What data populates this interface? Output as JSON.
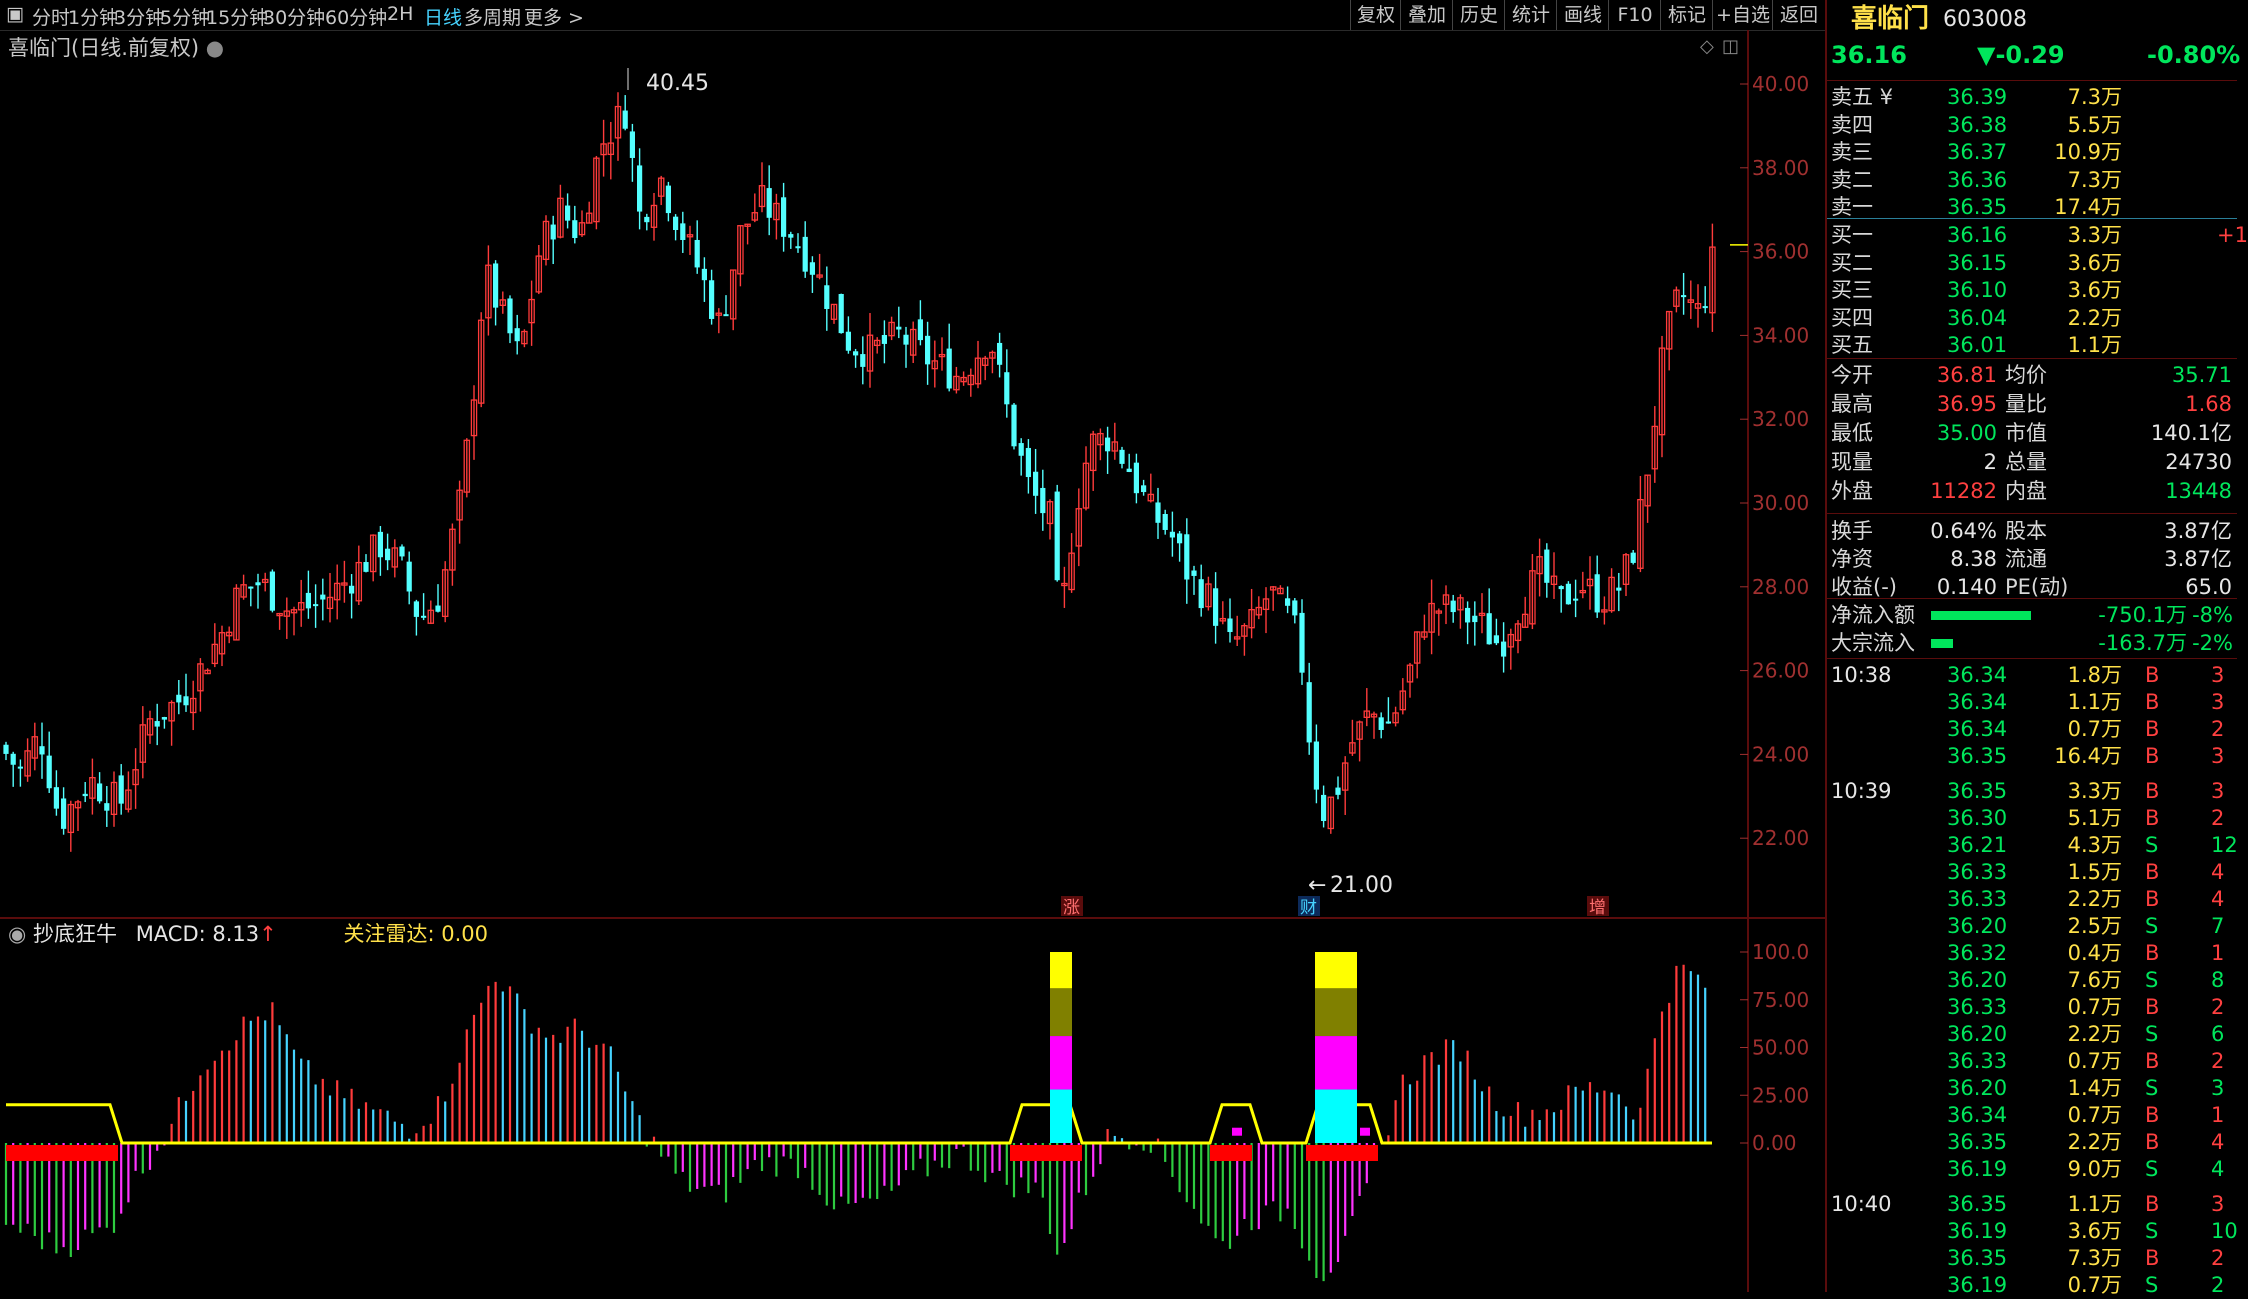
{
  "toolbar": {
    "periods": [
      "分时",
      "1分钟",
      "3分钟",
      "5分钟",
      "15分钟",
      "30分钟",
      "60分钟",
      "2H",
      "日线",
      "多周期",
      "更多 >"
    ],
    "active_period": "日线",
    "right_buttons": [
      "复权",
      "叠加",
      "历史",
      "统计",
      "画线",
      "F10",
      "标记",
      "+自选",
      "返回"
    ]
  },
  "chart": {
    "title": "喜临门(日线.前复权)",
    "price_axis": [
      "40.00",
      "38.00",
      "36.00",
      "34.00",
      "32.00",
      "30.00",
      "28.00",
      "26.00",
      "24.00",
      "22.00"
    ],
    "high_label": "40.45",
    "low_label": "21.00",
    "markers": [
      "涨",
      "财",
      "增"
    ]
  },
  "indicator": {
    "name": "抄底狂牛",
    "macd_label": "MACD: 8.13",
    "macd_arrow": "↑",
    "radar_label": "关注雷达: 0.00",
    "axis": [
      "100.0",
      "75.00",
      "50.00",
      "25.00",
      "0.00"
    ]
  },
  "quote": {
    "name": "喜临门",
    "code": "603008",
    "price": "36.16",
    "change": "▼-0.29",
    "change_pct": "-0.80%",
    "asks": [
      {
        "label": "卖五 ¥",
        "price": "36.39",
        "vol": "7.3万"
      },
      {
        "label": "卖四",
        "price": "36.38",
        "vol": "5.5万"
      },
      {
        "label": "卖三",
        "price": "36.37",
        "vol": "10.9万"
      },
      {
        "label": "卖二",
        "price": "36.36",
        "vol": "7.3万"
      },
      {
        "label": "卖一",
        "price": "36.35",
        "vol": "17.4万"
      }
    ],
    "bids": [
      {
        "label": "买一",
        "price": "36.16",
        "vol": "3.3万",
        "extra": "+1"
      },
      {
        "label": "买二",
        "price": "36.15",
        "vol": "3.6万",
        "extra": ""
      },
      {
        "label": "买三",
        "price": "36.10",
        "vol": "3.6万",
        "extra": ""
      },
      {
        "label": "买四",
        "price": "36.04",
        "vol": "2.2万",
        "extra": ""
      },
      {
        "label": "买五",
        "price": "36.01",
        "vol": "1.1万",
        "extra": ""
      }
    ],
    "stats": [
      {
        "l1": "今开",
        "v1": "36.81",
        "l2": "均价",
        "v2": "35.71"
      },
      {
        "l1": "最高",
        "v1": "36.95",
        "l2": "量比",
        "v2": "1.68"
      },
      {
        "l1": "最低",
        "v1": "35.00",
        "l2": "市值",
        "v2": "140.1亿"
      },
      {
        "l1": "现量",
        "v1": "2",
        "l2": "总量",
        "v2": "24730"
      },
      {
        "l1": "外盘",
        "v1": "11282",
        "l2": "内盘",
        "v2": "13448"
      }
    ],
    "stats2": [
      {
        "l1": "换手",
        "v1": "0.64%",
        "l2": "股本",
        "v2": "3.87亿"
      },
      {
        "l1": "净资",
        "v1": "8.38",
        "l2": "流通",
        "v2": "3.87亿"
      },
      {
        "l1": "收益(-)",
        "v1": "0.140",
        "l2": "PE(动)",
        "v2": "65.0"
      }
    ],
    "flows": [
      {
        "label": "净流入额",
        "value": "-750.1万",
        "pct": "-8%"
      },
      {
        "label": "大宗流入",
        "value": "-163.7万",
        "pct": "-2%"
      }
    ],
    "ticks": [
      {
        "time": "10:38",
        "price": "36.34",
        "vol": "1.8万",
        "bs": "B",
        "n": "3"
      },
      {
        "time": "",
        "price": "36.34",
        "vol": "1.1万",
        "bs": "B",
        "n": "3"
      },
      {
        "time": "",
        "price": "36.34",
        "vol": "0.7万",
        "bs": "B",
        "n": "2"
      },
      {
        "time": "",
        "price": "36.35",
        "vol": "16.4万",
        "bs": "B",
        "n": "3"
      },
      {
        "time": "10:39",
        "price": "36.35",
        "vol": "3.3万",
        "bs": "B",
        "n": "3"
      },
      {
        "time": "",
        "price": "36.30",
        "vol": "5.1万",
        "bs": "B",
        "n": "2"
      },
      {
        "time": "",
        "price": "36.21",
        "vol": "4.3万",
        "bs": "S",
        "n": "12"
      },
      {
        "time": "",
        "price": "36.33",
        "vol": "1.5万",
        "bs": "B",
        "n": "4"
      },
      {
        "time": "",
        "price": "36.33",
        "vol": "2.2万",
        "bs": "B",
        "n": "4"
      },
      {
        "time": "",
        "price": "36.20",
        "vol": "2.5万",
        "bs": "S",
        "n": "7"
      },
      {
        "time": "",
        "price": "36.32",
        "vol": "0.4万",
        "bs": "B",
        "n": "1"
      },
      {
        "time": "",
        "price": "36.20",
        "vol": "7.6万",
        "bs": "S",
        "n": "8"
      },
      {
        "time": "",
        "price": "36.33",
        "vol": "0.7万",
        "bs": "B",
        "n": "2"
      },
      {
        "time": "",
        "price": "36.20",
        "vol": "2.2万",
        "bs": "S",
        "n": "6"
      },
      {
        "time": "",
        "price": "36.33",
        "vol": "0.7万",
        "bs": "B",
        "n": "2"
      },
      {
        "time": "",
        "price": "36.20",
        "vol": "1.4万",
        "bs": "S",
        "n": "3"
      },
      {
        "time": "",
        "price": "36.34",
        "vol": "0.7万",
        "bs": "B",
        "n": "1"
      },
      {
        "time": "",
        "price": "36.35",
        "vol": "2.2万",
        "bs": "B",
        "n": "4"
      },
      {
        "time": "",
        "price": "36.19",
        "vol": "9.0万",
        "bs": "S",
        "n": "4"
      },
      {
        "time": "10:40",
        "price": "36.35",
        "vol": "1.1万",
        "bs": "B",
        "n": "3"
      },
      {
        "time": "",
        "price": "36.19",
        "vol": "3.6万",
        "bs": "S",
        "n": "10"
      },
      {
        "time": "",
        "price": "36.35",
        "vol": "7.3万",
        "bs": "B",
        "n": "2"
      },
      {
        "time": "",
        "price": "36.19",
        "vol": "0.7万",
        "bs": "S",
        "n": "2"
      }
    ]
  },
  "colors": {
    "up": "#ff3b3b",
    "down": "#54ffff",
    "ma": "#ffff00",
    "accent": "#46d3ff"
  }
}
